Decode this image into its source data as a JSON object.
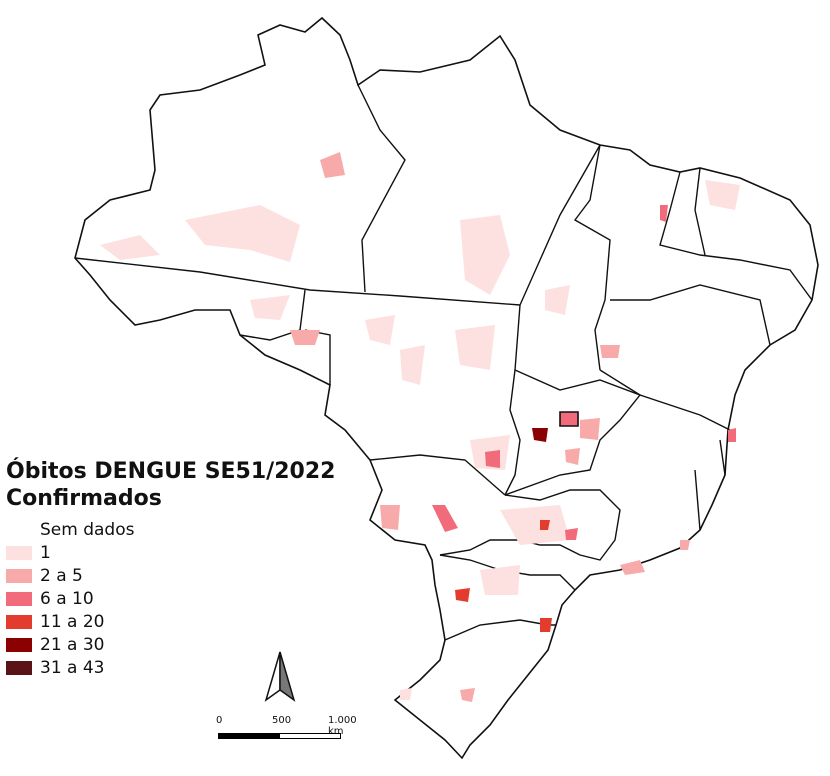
{
  "legend": {
    "title_line1": "Óbitos DENGUE SE51/2022",
    "title_line2": "Confirmados",
    "items": [
      {
        "label": "Sem dados",
        "color": "#ffffff"
      },
      {
        "label": "1",
        "color": "#fde0e0"
      },
      {
        "label": "2 a 5",
        "color": "#f8aaaa"
      },
      {
        "label": "6 a 10",
        "color": "#f26b7a"
      },
      {
        "label": "11 a 20",
        "color": "#e43b2f"
      },
      {
        "label": "21 a 30",
        "color": "#8b0000"
      },
      {
        "label": "31 a 43",
        "color": "#5a1418"
      }
    ]
  },
  "scale": {
    "labels": [
      "0",
      "500",
      "1.000 km"
    ]
  },
  "north_arrow": {
    "icon": "north-arrow-icon"
  }
}
